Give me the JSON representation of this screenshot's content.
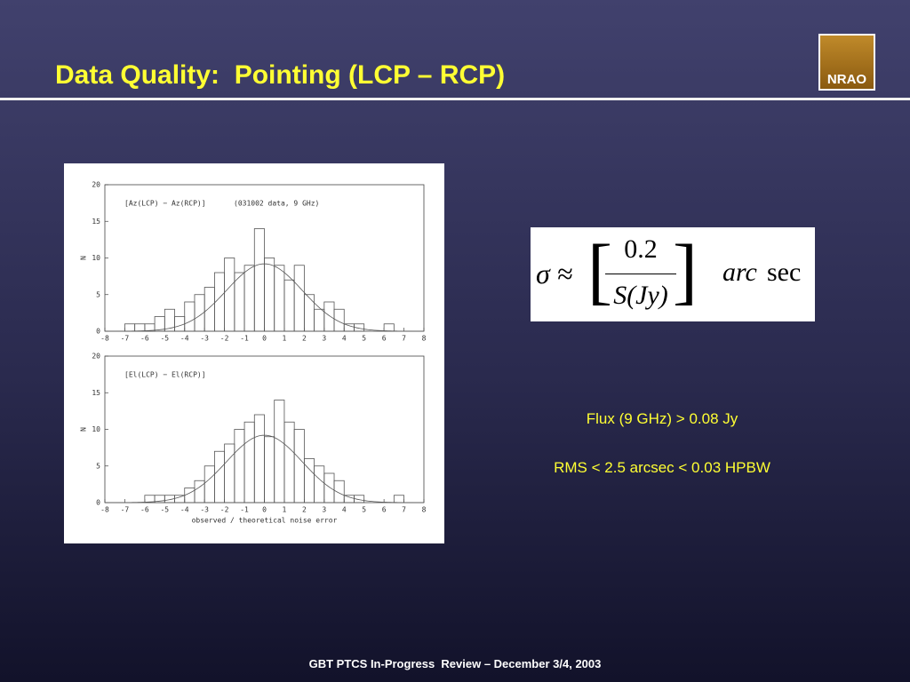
{
  "title": "Data Quality:  Pointing (LCP – RCP)",
  "logo": "NRAO",
  "formula": {
    "lhs": "σ ≈",
    "numerator": "0.2",
    "denominator": "S(Jy)",
    "unit_italic": "arc",
    "unit": "sec"
  },
  "notes": [
    "Flux (9 GHz) > 0.08 Jy",
    "RMS < 2.5 arcsec < 0.03 HPBW"
  ],
  "footer": "GBT PTCS In-Progress  Review – December 3/4, 2003",
  "chart_data": [
    {
      "type": "histogram",
      "annotations": [
        "[Az(LCP) − Az(RCP)]",
        "(031002 data, 9 GHz)"
      ],
      "ylabel": "N",
      "bins": [
        -7,
        -6.5,
        -6,
        -5.5,
        -5,
        -4.5,
        -4,
        -3.5,
        -3,
        -2.5,
        -2,
        -1.5,
        -1,
        -0.5,
        0,
        0.5,
        1,
        1.5,
        2,
        2.5,
        3,
        3.5,
        4,
        4.5,
        5,
        5.5,
        6,
        6.5,
        7
      ],
      "counts": [
        1,
        1,
        1,
        2,
        3,
        2,
        4,
        5,
        6,
        8,
        10,
        8,
        9,
        14,
        10,
        9,
        7,
        9,
        5,
        3,
        4,
        3,
        1,
        1,
        0,
        0,
        1,
        0
      ],
      "fit": {
        "mean": 0,
        "sigma": 1.9,
        "peak": 9.2
      },
      "color": "#555555",
      "xlim": [
        -8,
        8
      ],
      "xticks": [
        -8,
        -7,
        -6,
        -5,
        -4,
        -3,
        -2,
        -1,
        0,
        1,
        2,
        3,
        4,
        5,
        6,
        7,
        8
      ],
      "ylim": [
        0,
        20
      ],
      "yticks": [
        0,
        5,
        10,
        15,
        20
      ]
    },
    {
      "type": "histogram",
      "annotations": [
        "[El(LCP) − El(RCP)]"
      ],
      "ylabel": "N",
      "xlabel": "observed / theoretical noise error",
      "bins": [
        -7,
        -6.5,
        -6,
        -5.5,
        -5,
        -4.5,
        -4,
        -3.5,
        -3,
        -2.5,
        -2,
        -1.5,
        -1,
        -0.5,
        0,
        0.5,
        1,
        1.5,
        2,
        2.5,
        3,
        3.5,
        4,
        4.5,
        5,
        5.5,
        6,
        6.5,
        7
      ],
      "counts": [
        0,
        0,
        1,
        1,
        1,
        1,
        2,
        3,
        5,
        7,
        8,
        10,
        11,
        12,
        9,
        14,
        11,
        10,
        6,
        5,
        4,
        3,
        1,
        1,
        0,
        0,
        0,
        1
      ],
      "fit": {
        "mean": 0,
        "sigma": 1.9,
        "peak": 9.2
      },
      "color": "#555555",
      "xlim": [
        -8,
        8
      ],
      "xticks": [
        -8,
        -7,
        -6,
        -5,
        -4,
        -3,
        -2,
        -1,
        0,
        1,
        2,
        3,
        4,
        5,
        6,
        7,
        8
      ],
      "ylim": [
        0,
        20
      ],
      "yticks": [
        0,
        5,
        10,
        15,
        20
      ]
    }
  ]
}
